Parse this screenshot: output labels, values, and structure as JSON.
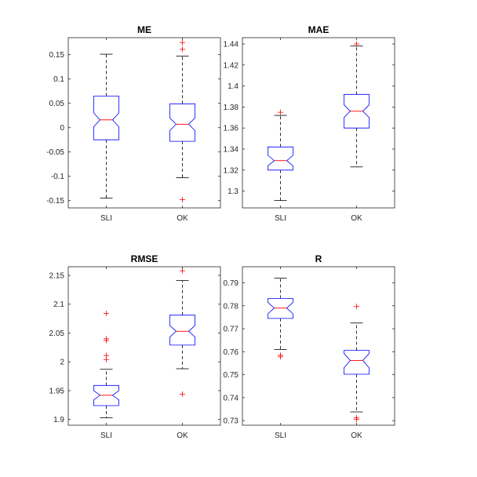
{
  "chart_data": [
    {
      "type": "boxplot",
      "title": "ME",
      "categories": [
        "SLI",
        "OK"
      ],
      "ylim": [
        -0.165,
        0.185
      ],
      "yticks": [
        -0.15,
        -0.1,
        -0.05,
        0,
        0.05,
        0.1,
        0.15
      ],
      "ytick_labels": [
        "-0.15",
        "-0.1",
        "-0.05",
        "0",
        "0.05",
        "0.1",
        "0.15"
      ],
      "boxes": [
        {
          "name": "SLI",
          "whisker_low": -0.145,
          "q1": -0.025,
          "median": 0.016,
          "q3": 0.065,
          "whisker_high": 0.151,
          "notch_low": 0.002,
          "notch_high": 0.03,
          "outliers": []
        },
        {
          "name": "OK",
          "whisker_low": -0.103,
          "q1": -0.028,
          "median": 0.007,
          "q3": 0.049,
          "whisker_high": 0.147,
          "notch_low": -0.006,
          "notch_high": 0.02,
          "outliers": [
            0.175,
            0.161,
            -0.148
          ]
        }
      ]
    },
    {
      "type": "boxplot",
      "title": "MAE",
      "categories": [
        "SLI",
        "OK"
      ],
      "ylim": [
        1.284,
        1.446
      ],
      "yticks": [
        1.3,
        1.32,
        1.34,
        1.36,
        1.38,
        1.4,
        1.42,
        1.44
      ],
      "ytick_labels": [
        "1.3",
        "1.32",
        "1.34",
        "1.36",
        "1.38",
        "1.4",
        "1.42",
        "1.44"
      ],
      "boxes": [
        {
          "name": "SLI",
          "whisker_low": 1.291,
          "q1": 1.32,
          "median": 1.329,
          "q3": 1.342,
          "whisker_high": 1.372,
          "notch_low": 1.324,
          "notch_high": 1.334,
          "outliers": [
            1.375
          ]
        },
        {
          "name": "OK",
          "whisker_low": 1.323,
          "q1": 1.36,
          "median": 1.376,
          "q3": 1.392,
          "whisker_high": 1.438,
          "notch_low": 1.37,
          "notch_high": 1.382,
          "outliers": [
            1.44
          ]
        }
      ]
    },
    {
      "type": "boxplot",
      "title": "RMSE",
      "categories": [
        "SLI",
        "OK"
      ],
      "ylim": [
        1.89,
        2.165
      ],
      "yticks": [
        1.9,
        1.95,
        2,
        2.05,
        2.1,
        2.15
      ],
      "ytick_labels": [
        "1.9",
        "1.95",
        "2",
        "2.05",
        "2.1",
        "2.15"
      ],
      "boxes": [
        {
          "name": "SLI",
          "whisker_low": 1.903,
          "q1": 1.924,
          "median": 1.942,
          "q3": 1.959,
          "whisker_high": 1.987,
          "notch_low": 1.934,
          "notch_high": 1.95,
          "outliers": [
            2.084,
            2.04,
            2.037,
            2.011,
            2.004
          ]
        },
        {
          "name": "OK",
          "whisker_low": 1.988,
          "q1": 2.029,
          "median": 2.053,
          "q3": 2.081,
          "whisker_high": 2.141,
          "notch_low": 2.043,
          "notch_high": 2.063,
          "outliers": [
            2.158,
            1.944
          ]
        }
      ]
    },
    {
      "type": "boxplot",
      "title": "R",
      "categories": [
        "SLI",
        "OK"
      ],
      "ylim": [
        0.728,
        0.797
      ],
      "yticks": [
        0.73,
        0.74,
        0.75,
        0.76,
        0.77,
        0.78,
        0.79
      ],
      "ytick_labels": [
        "0.73",
        "0.74",
        "0.75",
        "0.76",
        "0.77",
        "0.78",
        "0.79"
      ],
      "boxes": [
        {
          "name": "SLI",
          "whisker_low": 0.761,
          "q1": 0.7745,
          "median": 0.779,
          "q3": 0.7832,
          "whisker_high": 0.792,
          "notch_low": 0.7765,
          "notch_high": 0.7815,
          "outliers": [
            0.7585,
            0.7578
          ]
        },
        {
          "name": "OK",
          "whisker_low": 0.7338,
          "q1": 0.7502,
          "median": 0.7562,
          "q3": 0.7606,
          "whisker_high": 0.7725,
          "notch_low": 0.753,
          "notch_high": 0.7592,
          "outliers": [
            0.7797,
            0.7312,
            0.7306
          ]
        }
      ]
    }
  ]
}
